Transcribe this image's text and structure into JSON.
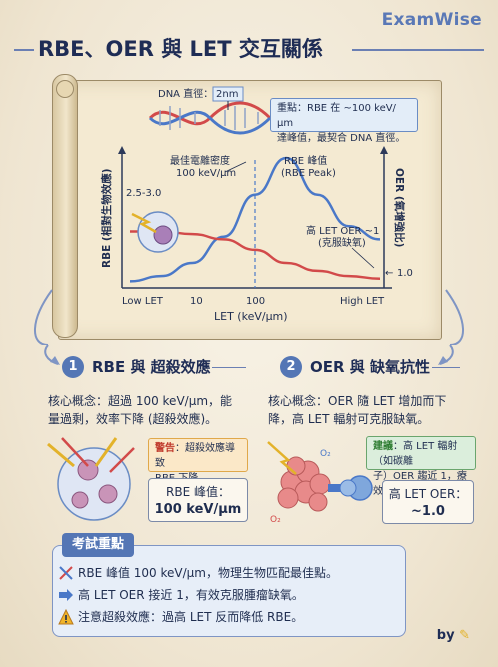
{
  "brand": "ExamWise",
  "title": "RBE、OER 與 LET 交互關係",
  "dna": {
    "label": "DNA 直徑：",
    "value": "2nm"
  },
  "note": {
    "line1": "重點：RBE 在 ~100 keV/μm",
    "line2": "達峰值，最契合 DNA 直徑。"
  },
  "chart_data": {
    "type": "line",
    "xlabel": "LET (keV/μm)",
    "ylabel_left": "RBE (相對生物效應)",
    "ylabel_right": "OER (氧增強比)",
    "x_ticks": [
      "Low LET",
      "10",
      "100",
      "High LET"
    ],
    "y_left_tick": "2.5-3.0",
    "y_right_tick": "1.0",
    "series": [
      {
        "name": "RBE",
        "color": "#4a78c8",
        "values": [
          0.9,
          1.1,
          1.6,
          2.6,
          4.2,
          5.6,
          4.2,
          3.0,
          2.5
        ]
      },
      {
        "name": "OER",
        "color": "#d24a4a",
        "values": [
          2.8,
          2.8,
          2.7,
          2.5,
          2.1,
          1.6,
          1.3,
          1.1,
          1.0
        ]
      }
    ],
    "annotations": {
      "optimal_line1": "最佳電離密度",
      "optimal_line2": "100 keV/μm",
      "peak_line1": "RBE 峰值",
      "peak_line2": "(RBE Peak)",
      "oer_line1": "高 LET OER ~1",
      "oer_line2": "(克服缺氧)"
    },
    "peak_marker": "100"
  },
  "section1": {
    "num": "1",
    "title": "RBE 與 超殺效應",
    "concept_line1": "核心概念：超過 100 keV/μm，能",
    "concept_line2": "量過剩，效率下降 (超殺效應)。",
    "warn_tag": "警告",
    "warn_line1": "：超殺效應導致",
    "warn_line2": "RBE 下降。",
    "val_label": "RBE 峰值：",
    "val_value": "100 keV/μm"
  },
  "section2": {
    "num": "2",
    "title": "OER 與 缺氧抗性",
    "concept_line1": "核心概念：OER 隨 LET 增加而下",
    "concept_line2": "降，高 LET 輻射可克服缺氧。",
    "hint_tag": "建議",
    "hint_line1": "：高 LET 輻射（如碳離",
    "hint_line2": "子）OER 趨近 1，療效佳。",
    "val_label": "高 LET OER：",
    "val_value": "~1.0",
    "o2_label": "O₂"
  },
  "exam": {
    "tag": "考試重點",
    "items": [
      "RBE 峰值 100 keV/μm，物理生物匹配最佳點。",
      "高 LET OER 接近 1，有效克服腫瘤缺氧。",
      "注意超殺效應：過高 LET 反而降低 RBE。"
    ]
  },
  "by": "by"
}
